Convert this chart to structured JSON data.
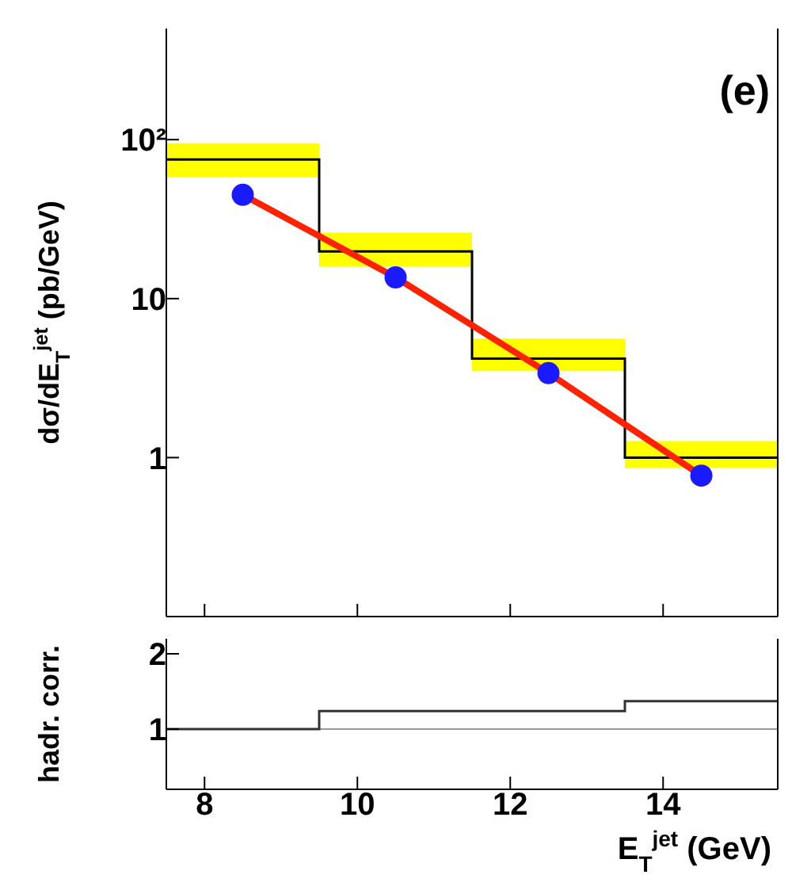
{
  "chart_data": [
    {
      "type": "step",
      "ylabel": "dσ/dE$_{T}$$^{jet}$ (pb/GeV)",
      "annotations": [
        "(e)"
      ],
      "xlim": [
        7.5,
        15.5
      ],
      "xticks": [
        8,
        10,
        12,
        14
      ],
      "ylim": [
        0.1,
        500
      ],
      "yticks": [
        1,
        10,
        {
          "value": 100,
          "label": "10²"
        }
      ],
      "log": "y",
      "tick_labels": "y",
      "grid": false,
      "series": [
        {
          "color": "#000000",
          "x": [
            7.5,
            9.5,
            11.5,
            13.5,
            15.5
          ],
          "values": [
            75,
            19.8,
            4.2,
            1.0,
            1.0
          ],
          "lower": [
            58,
            15.9,
            3.5,
            0.86,
            0.86
          ],
          "upper": [
            95,
            26,
            5.6,
            1.27,
            1.27
          ]
        },
        {
          "type": "line",
          "color": "#ff2200",
          "x": [
            8.5,
            10.5,
            12.5,
            14.5
          ],
          "values": [
            45,
            13.6,
            3.4,
            0.77
          ]
        },
        {
          "type": "scatter",
          "color": "#1a1aff",
          "marker": "circle",
          "x": [
            8.5,
            10.5,
            12.5,
            14.5
          ],
          "values": [
            45,
            13.6,
            3.4,
            0.77
          ]
        }
      ]
    },
    {
      "type": "step",
      "xlabel": "E$_{T}$$^{jet}$ (GeV)",
      "ylabel": "hadr. corr.",
      "xlim": [
        7.5,
        15.5
      ],
      "xticks": [
        8,
        10,
        12,
        14
      ],
      "ylim": [
        0.2,
        2.2
      ],
      "yticks": [
        1,
        2
      ],
      "grid": false,
      "ref_lines": [
        {
          "axis": "y",
          "value": 1,
          "color": "#999999"
        }
      ],
      "series": [
        {
          "color": "#333333",
          "x": [
            7.5,
            9.5,
            11.5,
            13.5,
            15.5
          ],
          "values": [
            1.0,
            1.24,
            1.24,
            1.37,
            1.37
          ]
        }
      ]
    }
  ]
}
